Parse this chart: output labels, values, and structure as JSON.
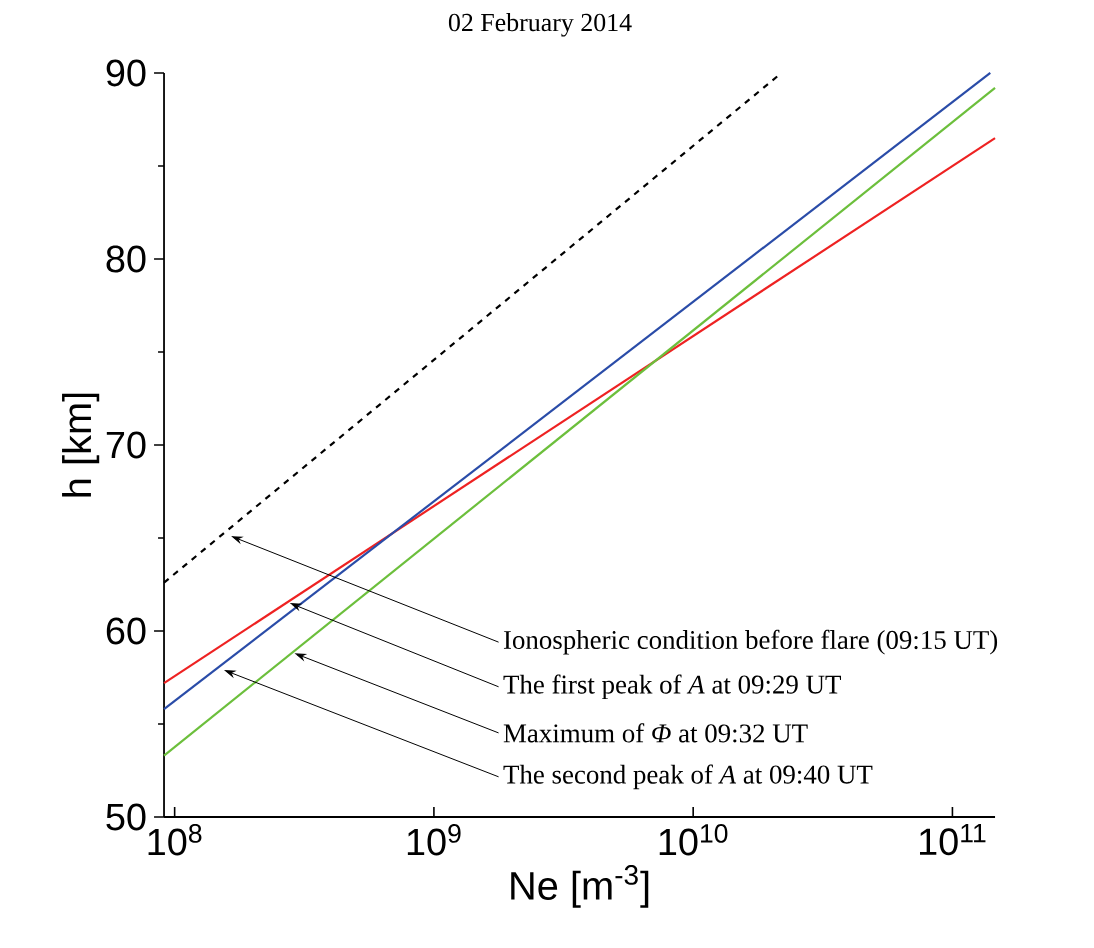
{
  "chart_data": {
    "type": "line",
    "title": "02 February 2014",
    "xlabel": "Ne  [m$^{-3}$]",
    "ylabel": "h [km]",
    "log": "x",
    "xlim": [
      91000000,
      146000000000
    ],
    "ylim": [
      50,
      90
    ],
    "xticks": [
      {
        "value": 100000000,
        "label": "10$^{8}$"
      },
      {
        "value": 1000000000,
        "label": "10$^{9}$"
      },
      {
        "value": 10000000000,
        "label": "10$^{10}$"
      },
      {
        "value": 100000000000,
        "label": "10$^{11}$"
      }
    ],
    "yticks": [
      50,
      60,
      70,
      80,
      90
    ],
    "series": [
      {
        "color": "#000000",
        "line_style": "dashed",
        "x": [
          91000000,
          21900000000
        ],
        "values": [
          62.6,
          90
        ]
      },
      {
        "color": "#ee2222",
        "line_style": "solid",
        "x": [
          91000000,
          146000000000
        ],
        "values": [
          57.2,
          86.5
        ]
      },
      {
        "color": "#2a4ca8",
        "line_style": "solid",
        "x": [
          91000000,
          140000000000
        ],
        "values": [
          55.8,
          90
        ]
      },
      {
        "color": "#6cbf3c",
        "line_style": "solid",
        "x": [
          91000000,
          146000000000
        ],
        "values": [
          53.3,
          89.2
        ]
      }
    ],
    "annotations": [
      {
        "text": "Ionospheric condition before flare (09:15 UT)",
        "x": 165000000,
        "y": 65.1
      },
      {
        "text": "The first peak of *A* at 09:29 UT",
        "x": 278000000,
        "y": 61.5
      },
      {
        "text": "Maximum of *Φ* at 09:32 UT",
        "x": 290000000,
        "y": 58.8
      },
      {
        "text": "The second peak of *A* at 09:40 UT",
        "x": 155000000,
        "y": 57.9
      }
    ]
  }
}
